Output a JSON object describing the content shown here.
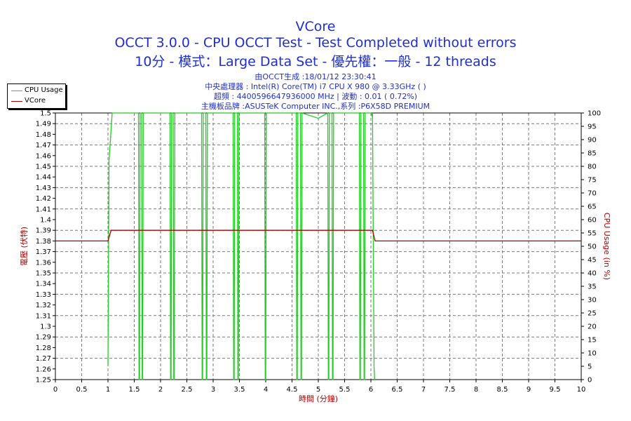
{
  "titles": {
    "line1": "VCore",
    "line2": "OCCT 3.0.0 - CPU OCCT Test - Test Completed without errors",
    "line3": "10分 - 模式：Large Data Set - 優先權：一般 - 12 threads"
  },
  "info": {
    "line1": "由OCCT生成 :18/01/12 23:30:41",
    "line2": "中央處理器 : Intel(R) Core(TM) i7 CPU X 980 @ 3.33GHz (   )",
    "line3": "超頻 : 4400596647936000 MHz | 波動 : 0.01 ( 0.72%)",
    "line4": "主機板品牌 :ASUSTeK Computer INC.,系列 :P6X58D PREMIUM"
  },
  "legend": {
    "items": [
      {
        "label": "CPU Usage",
        "color": "#22cc22"
      },
      {
        "label": "VCore",
        "color": "#b00000"
      }
    ]
  },
  "chart_data": {
    "type": "line",
    "title": "VCore",
    "xlabel": "時間 (分鐘)",
    "ylabel": "電壓 (伏特)",
    "y2label": "CPU Usage (in %)",
    "xlim": [
      0,
      10
    ],
    "ylim": [
      1.25,
      1.5
    ],
    "y2lim": [
      0,
      100
    ],
    "grid": true,
    "legend_position": "top-left",
    "x_ticks": [
      "0",
      "0.5",
      "1",
      "1.5",
      "2",
      "2.5",
      "3",
      "3.5",
      "4",
      "4.5",
      "5",
      "5.5",
      "6",
      "6.5",
      "7",
      "7.5",
      "8",
      "8.5",
      "9",
      "9.5",
      "10"
    ],
    "y_ticks": [
      "1.25",
      "1.26",
      "1.27",
      "1.28",
      "1.29",
      "1.3",
      "1.31",
      "1.32",
      "1.33",
      "1.34",
      "1.35",
      "1.36",
      "1.37",
      "1.38",
      "1.39",
      "1.4",
      "1.41",
      "1.42",
      "1.43",
      "1.44",
      "1.45",
      "1.46",
      "1.47",
      "1.48",
      "1.49",
      "1.5"
    ],
    "y2_ticks": [
      "0",
      "5",
      "10",
      "15",
      "20",
      "25",
      "30",
      "35",
      "40",
      "45",
      "50",
      "55",
      "60",
      "65",
      "70",
      "75",
      "80",
      "85",
      "90",
      "95",
      "100"
    ],
    "series": [
      {
        "name": "VCore",
        "axis": "left",
        "color": "#b00000",
        "x": [
          0,
          1.0,
          1.06,
          6.03,
          6.08,
          10
        ],
        "y": [
          1.38,
          1.38,
          1.39,
          1.39,
          1.38,
          1.38
        ]
      },
      {
        "name": "CPU Usage",
        "axis": "right",
        "color": "#22cc22",
        "x": [
          1.0,
          1.02,
          1.08,
          1.58,
          1.59,
          1.6,
          1.61,
          1.64,
          1.65,
          1.66,
          1.67,
          2.18,
          2.19,
          2.2,
          2.21,
          2.24,
          2.25,
          2.26,
          2.27,
          2.78,
          2.79,
          2.8,
          2.81,
          2.86,
          2.87,
          2.88,
          2.89,
          3.38,
          3.39,
          3.4,
          3.41,
          3.46,
          3.47,
          3.48,
          3.49,
          3.98,
          3.99,
          4.0,
          4.01,
          4.58,
          4.59,
          4.6,
          4.61,
          4.66,
          4.67,
          4.68,
          4.69,
          5.0,
          5.18,
          5.19,
          5.2,
          5.21,
          5.26,
          5.27,
          5.28,
          5.29,
          5.78,
          5.79,
          5.8,
          5.81,
          5.86,
          5.87,
          5.88,
          5.89,
          6.0,
          6.02,
          6.03,
          6.06,
          6.07
        ],
        "y": [
          5,
          82,
          100,
          100,
          0,
          0,
          100,
          100,
          0,
          0,
          100,
          100,
          0,
          0,
          100,
          100,
          0,
          0,
          100,
          100,
          0,
          0,
          100,
          100,
          0,
          0,
          100,
          100,
          0,
          0,
          100,
          100,
          0,
          0,
          100,
          100,
          0,
          0,
          100,
          100,
          0,
          0,
          100,
          100,
          0,
          0,
          100,
          98,
          100,
          0,
          0,
          100,
          100,
          0,
          0,
          100,
          100,
          0,
          0,
          100,
          100,
          0,
          0,
          100,
          100,
          99,
          100,
          5,
          0
        ]
      }
    ]
  }
}
